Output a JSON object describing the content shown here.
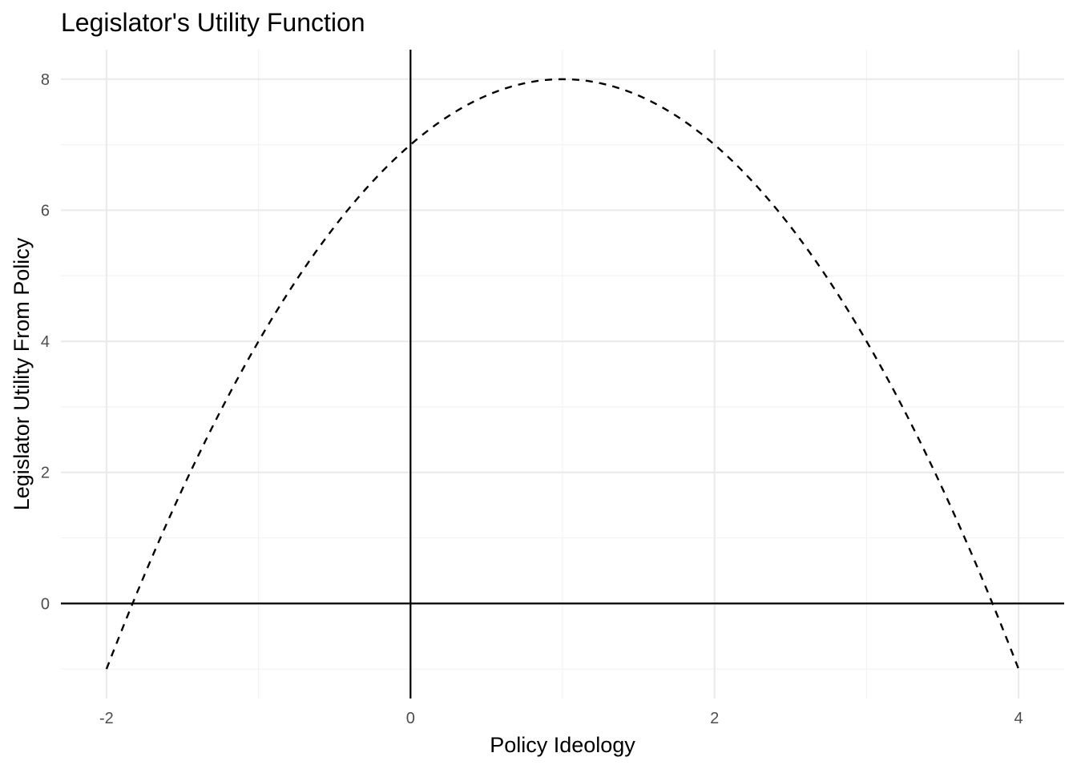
{
  "chart_data": {
    "type": "line",
    "title": "Legislator's Utility Function",
    "xlabel": "Policy Ideology",
    "ylabel": "Legislator Utility From Policy",
    "xlim": [
      -2.3,
      4.3
    ],
    "ylim": [
      -1.45,
      8.45
    ],
    "x_ticks": [
      -2,
      0,
      2,
      4
    ],
    "x_tick_labels": [
      "-2",
      "0",
      "2",
      "4"
    ],
    "y_ticks": [
      0,
      2,
      4,
      6,
      8
    ],
    "y_tick_labels": [
      "0",
      "2",
      "4",
      "6",
      "8"
    ],
    "grid": true,
    "reference_lines": {
      "x": 0,
      "y": 0
    },
    "line_style": "dashed",
    "series": [
      {
        "x": [
          -2,
          -1.5,
          -1,
          -0.5,
          0,
          0.5,
          1,
          1.5,
          2,
          2.5,
          3,
          3.5,
          4
        ],
        "y": [
          -1,
          1.75,
          4,
          5.75,
          7,
          7.75,
          8,
          7.75,
          7,
          5.75,
          4,
          1.75,
          -1
        ]
      }
    ],
    "colors": {
      "line": "#000000",
      "grid_major": "#ebebeb",
      "grid_minor": "#f2f2f2",
      "background": "#ffffff"
    }
  }
}
